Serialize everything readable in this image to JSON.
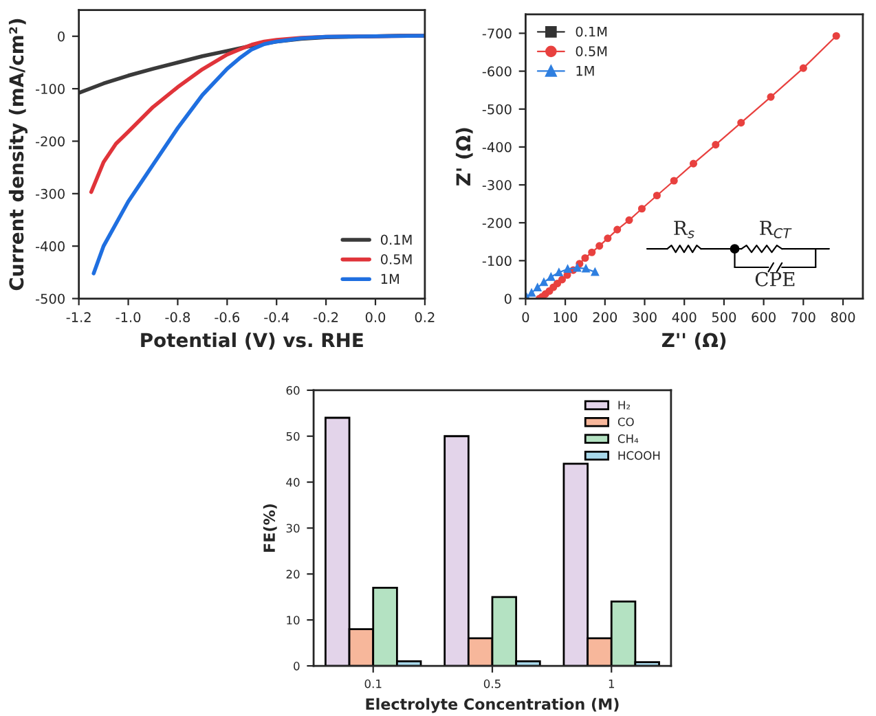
{
  "chart_data": [
    {
      "type": "line",
      "xlabel": "Potential (V) vs. RHE",
      "ylabel": "Current density (mA/cm²)",
      "xlim": [
        -1.2,
        0.2
      ],
      "xticks": [
        -1.2,
        {
          "value": -1.0,
          "label": "-1.0"
        },
        -0.8,
        -0.6,
        -0.4,
        -0.2,
        {
          "value": 0.0,
          "label": "0.0"
        },
        0.2
      ],
      "ylim": [
        -500,
        50
      ],
      "yticks": [
        -500,
        -400,
        -300,
        -200,
        -100,
        0
      ],
      "legend": "bottom right",
      "grid": false,
      "marker": "none",
      "line_style": "solid",
      "series": [
        {
          "name": "0.1M",
          "color": "#3a3a3a",
          "x": [
            -1.2,
            -1.1,
            -1.0,
            -0.9,
            -0.8,
            -0.7,
            -0.6,
            -0.5,
            -0.4,
            -0.3,
            -0.2,
            -0.1,
            0.0,
            0.1,
            0.2
          ],
          "values": [
            -108,
            -90,
            -75,
            -62,
            -50,
            -38,
            -28,
            -18,
            -10,
            -5,
            -2,
            -1,
            0,
            1,
            1
          ]
        },
        {
          "name": "0.5M",
          "color": "#e0343a",
          "x": [
            -1.15,
            -1.1,
            -1.05,
            -1.0,
            -0.9,
            -0.8,
            -0.7,
            -0.6,
            -0.55,
            -0.5,
            -0.45,
            -0.4,
            -0.3,
            -0.2,
            0.0,
            0.2
          ],
          "values": [
            -297,
            -240,
            -205,
            -182,
            -135,
            -97,
            -63,
            -35,
            -25,
            -16,
            -10,
            -7,
            -3,
            -1,
            0,
            1
          ]
        },
        {
          "name": "1M",
          "color": "#1f6fe0",
          "x": [
            -1.14,
            -1.1,
            -1.0,
            -0.9,
            -0.8,
            -0.7,
            -0.6,
            -0.55,
            -0.5,
            -0.45,
            -0.4,
            -0.3,
            -0.2,
            0.0,
            0.2
          ],
          "values": [
            -452,
            -400,
            -315,
            -245,
            -175,
            -112,
            -62,
            -42,
            -25,
            -15,
            -10,
            -4,
            -1,
            0,
            1
          ]
        }
      ]
    },
    {
      "type": "line",
      "xlabel": "Z'' (Ω)",
      "ylabel": "Z' (Ω)",
      "xlim": [
        0,
        850
      ],
      "xticks": [
        0,
        100,
        200,
        300,
        400,
        500,
        600,
        700,
        800
      ],
      "ylim": [
        0,
        -750
      ],
      "yticks": [
        0,
        -100,
        -200,
        -300,
        -400,
        -500,
        -600,
        -700
      ],
      "legend": "top left",
      "grid": false,
      "line_style": "solid",
      "annotations": [
        "R$_{s}$",
        "R$_{CT}$",
        "CPE"
      ],
      "series": [
        {
          "name": "0.1M",
          "color": "#333333",
          "marker": "square"
        },
        {
          "name": "0.5M",
          "color": "#e8413f",
          "marker": "circle",
          "x": [
            35,
            42,
            50,
            60,
            70,
            80,
            92,
            105,
            120,
            136,
            150,
            167,
            186,
            207,
            231,
            261,
            293,
            331,
            374,
            423,
            479,
            543,
            618,
            700,
            783
          ],
          "values": [
            0,
            -5,
            -12,
            -20,
            -30,
            -40,
            -50,
            -62,
            -75,
            -92,
            -107,
            -122,
            -139,
            -159,
            -182,
            -207,
            -237,
            -272,
            -311,
            -356,
            -406,
            -464,
            -532,
            -608,
            -693
          ]
        },
        {
          "name": "1M",
          "color": "#2f7fe0",
          "marker": "triangle",
          "x": [
            3,
            15,
            30,
            46,
            64,
            84,
            106,
            130,
            152,
            175
          ],
          "values": [
            -3,
            -15,
            -29,
            -43,
            -57,
            -69,
            -78,
            -81,
            -79,
            -70
          ]
        }
      ]
    },
    {
      "type": "bar",
      "xlabel": "Electrolyte Concentration (M)",
      "ylabel": "FE(%)",
      "categories": [
        "0.1",
        "0.5",
        "1"
      ],
      "ylim": [
        0,
        60
      ],
      "yticks": [
        0,
        10,
        20,
        30,
        40,
        50,
        60
      ],
      "legend": "top right",
      "grid": false,
      "series": [
        {
          "name": "H₂",
          "color": "#e3d4ea",
          "values": [
            54,
            50,
            44
          ]
        },
        {
          "name": "CO",
          "color": "#f7b79b",
          "values": [
            8,
            6,
            6
          ]
        },
        {
          "name": "CH₄",
          "color": "#b4e2c2",
          "values": [
            17,
            15,
            14
          ]
        },
        {
          "name": "HCOOH",
          "color": "#a8d8ea",
          "values": [
            1,
            1,
            0.8
          ]
        }
      ]
    }
  ]
}
